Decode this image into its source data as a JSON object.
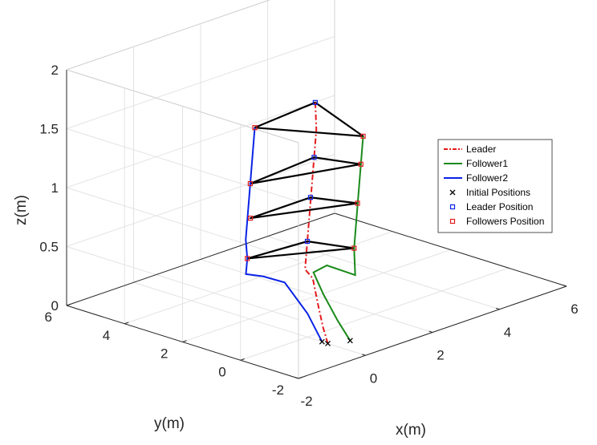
{
  "chart_data": {
    "type": "line3d",
    "xlabel": "x(m)",
    "ylabel": "y(m)",
    "zlabel": "z(m)",
    "xlim": [
      -2,
      6
    ],
    "ylim": [
      -2,
      6
    ],
    "zlim": [
      0,
      2
    ],
    "xticks": [
      "-2",
      "0",
      "2",
      "4",
      "6"
    ],
    "yticks": [
      "-2",
      "0",
      "2",
      "4",
      "6"
    ],
    "zticks": [
      "0",
      "0.5",
      "1",
      "1.5",
      "2"
    ],
    "grid": true,
    "legend_placement": "right",
    "legend": [
      {
        "label": "Leader",
        "style": "dashdot",
        "color": "#e41a1c"
      },
      {
        "label": "Follower1",
        "style": "line",
        "color": "#1a8a1a"
      },
      {
        "label": "Follower2",
        "style": "line",
        "color": "#0a23e6"
      },
      {
        "label": "Initial Positions",
        "style": "x-marker",
        "color": "#000000"
      },
      {
        "label": "Leader Position",
        "style": "square-marker",
        "color": "#0a23e6"
      },
      {
        "label": "Followers Position",
        "style": "square-marker",
        "color": "#e41a1c"
      }
    ],
    "series": [
      {
        "name": "Leader",
        "points": [
          [
            0.0,
            -0.7,
            0.0
          ],
          [
            0.03,
            -0.5,
            0.12
          ],
          [
            0.05,
            -0.3,
            0.3
          ],
          [
            0.07,
            -0.1,
            0.5
          ],
          [
            0.1,
            0.2,
            0.55
          ],
          [
            0.6,
            0.7,
            0.7
          ],
          [
            1.1,
            1.2,
            0.85
          ],
          [
            1.6,
            1.7,
            1.0
          ],
          [
            2.1,
            2.2,
            1.15
          ],
          [
            2.6,
            2.7,
            1.3
          ],
          [
            3.0,
            3.2,
            1.45
          ]
        ]
      },
      {
        "name": "Follower1",
        "points": [
          [
            0.45,
            -0.95,
            0.0
          ],
          [
            0.38,
            -0.6,
            0.15
          ],
          [
            0.3,
            -0.2,
            0.35
          ],
          [
            0.35,
            0.2,
            0.5
          ],
          [
            0.75,
            0.2,
            0.52
          ],
          [
            1.1,
            -0.1,
            0.45
          ],
          [
            1.25,
            -0.2,
            0.42
          ],
          [
            1.65,
            0.3,
            0.57
          ],
          [
            2.15,
            0.8,
            0.72
          ],
          [
            2.65,
            1.3,
            0.87
          ],
          [
            3.15,
            1.8,
            1.02
          ],
          [
            3.65,
            2.3,
            1.17
          ]
        ]
      },
      {
        "name": "Follower2",
        "points": [
          [
            0.0,
            -0.5,
            0.0
          ],
          [
            0.0,
            0.0,
            0.2
          ],
          [
            -0.25,
            0.5,
            0.45
          ],
          [
            -0.55,
            0.9,
            0.5
          ],
          [
            -0.8,
            1.2,
            0.52
          ],
          [
            -0.5,
            1.5,
            0.6
          ],
          [
            -0.2,
            1.9,
            0.7
          ],
          [
            0.3,
            2.4,
            0.85
          ],
          [
            0.8,
            2.9,
            1.0
          ],
          [
            1.3,
            3.4,
            1.15
          ],
          [
            1.8,
            3.9,
            1.3
          ]
        ]
      }
    ],
    "formations": [
      {
        "leader": [
          0.6,
          0.7,
          0.7
        ],
        "followers": [
          [
            1.65,
            0.3,
            0.57
          ],
          [
            -0.5,
            1.5,
            0.6
          ]
        ]
      },
      {
        "leader": [
          1.3,
          1.4,
          0.95
        ],
        "followers": [
          [
            2.4,
            1.05,
            0.82
          ],
          [
            0.2,
            2.2,
            0.82
          ]
        ]
      },
      {
        "leader": [
          2.1,
          2.2,
          1.15
        ],
        "followers": [
          [
            3.15,
            1.8,
            1.02
          ],
          [
            0.8,
            2.9,
            1.0
          ]
        ]
      },
      {
        "leader": [
          3.0,
          3.2,
          1.45
        ],
        "followers": [
          [
            3.65,
            2.3,
            1.17
          ],
          [
            1.8,
            3.9,
            1.3
          ]
        ]
      }
    ],
    "initial_positions": [
      [
        0.0,
        -0.7,
        0.0
      ],
      [
        0.45,
        -0.95,
        0.0
      ],
      [
        0.0,
        -0.5,
        0.0
      ]
    ]
  }
}
